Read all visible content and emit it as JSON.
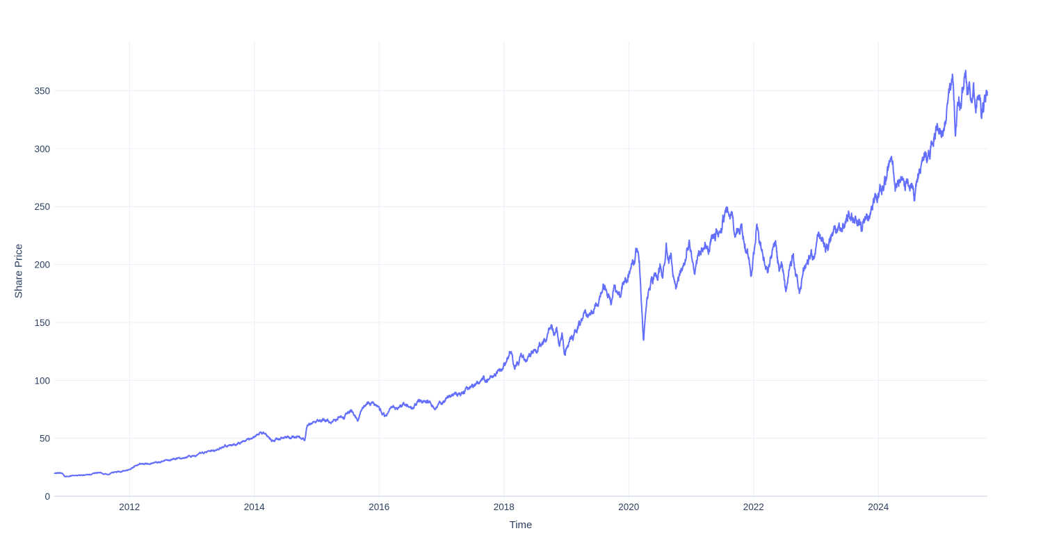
{
  "page": {
    "background": "#ffffff"
  },
  "chart_data": {
    "type": "line",
    "title": "",
    "xlabel": "Time",
    "ylabel": "Share Price",
    "legend": "none",
    "grid": true,
    "x_range": [
      2010.793,
      2025.746
    ],
    "y_range": [
      -3.0,
      392.3
    ],
    "x_ticks": [
      {
        "label": "2012",
        "value": 2012
      },
      {
        "label": "2014",
        "value": 2014
      },
      {
        "label": "2016",
        "value": 2016
      },
      {
        "label": "2018",
        "value": 2018
      },
      {
        "label": "2020",
        "value": 2020
      },
      {
        "label": "2022",
        "value": 2022
      },
      {
        "label": "2024",
        "value": 2024
      }
    ],
    "y_ticks": [
      {
        "label": "0",
        "value": 0
      },
      {
        "label": "50",
        "value": 50
      },
      {
        "label": "100",
        "value": 100
      },
      {
        "label": "150",
        "value": 150
      },
      {
        "label": "200",
        "value": 200
      },
      {
        "label": "250",
        "value": 250
      },
      {
        "label": "300",
        "value": 300
      },
      {
        "label": "350",
        "value": 350
      }
    ],
    "colors": {
      "line": "#636EFA",
      "grid": "#eaeff7",
      "zeroline": "#e1e7f2",
      "text": "#2a3f5f",
      "background": "#ffffff"
    },
    "series": [
      {
        "name": "Share Price",
        "line_width": 2,
        "points_per_year": 250,
        "noise_seed": 20,
        "noise": {
          "ar_coef": 0.88,
          "ar_innov": 0.012,
          "hf": 0.0055
        },
        "anchors_t": [
          2010.79,
          2010.85,
          2010.92,
          2010.96,
          2011.05,
          2011.15,
          2011.25,
          2011.33,
          2011.42,
          2011.5,
          2011.58,
          2011.65,
          2011.73,
          2011.82,
          2011.9,
          2012.0,
          2012.08,
          2012.16,
          2012.25,
          2012.33,
          2012.42,
          2012.5,
          2012.58,
          2012.67,
          2012.75,
          2012.83,
          2012.92,
          2013.0,
          2013.1,
          2013.2,
          2013.3,
          2013.4,
          2013.5,
          2013.6,
          2013.7,
          2013.8,
          2013.9,
          2014.0,
          2014.08,
          2014.15,
          2014.22,
          2014.28,
          2014.35,
          2014.42,
          2014.5,
          2014.58,
          2014.65,
          2014.71,
          2014.77,
          2014.81,
          2014.835,
          2014.87,
          2014.93,
          2015.0,
          2015.08,
          2015.15,
          2015.22,
          2015.3,
          2015.37,
          2015.44,
          2015.5,
          2015.56,
          2015.61,
          2015.655,
          2015.7,
          2015.76,
          2015.83,
          2015.9,
          2015.96,
          2016.03,
          2016.09,
          2016.17,
          2016.25,
          2016.33,
          2016.41,
          2016.47,
          2016.53,
          2016.6,
          2016.68,
          2016.76,
          2016.83,
          2016.89,
          2016.95,
          2017.0,
          2017.1,
          2017.2,
          2017.3,
          2017.4,
          2017.5,
          2017.6,
          2017.68,
          2017.75,
          2017.82,
          2017.9,
          2017.97,
          2018.04,
          2018.09,
          2018.13,
          2018.17,
          2018.23,
          2018.28,
          2018.34,
          2018.4,
          2018.47,
          2018.54,
          2018.61,
          2018.68,
          2018.73,
          2018.76,
          2018.8,
          2018.84,
          2018.89,
          2018.93,
          2018.97,
          2019.02,
          2019.08,
          2019.15,
          2019.22,
          2019.3,
          2019.37,
          2019.44,
          2019.5,
          2019.56,
          2019.61,
          2019.66,
          2019.71,
          2019.76,
          2019.81,
          2019.87,
          2019.93,
          2019.99,
          2020.05,
          2020.1,
          2020.13,
          2020.17,
          2020.2,
          2020.235,
          2020.27,
          2020.31,
          2020.36,
          2020.41,
          2020.46,
          2020.5,
          2020.54,
          2020.6,
          2020.64,
          2020.68,
          2020.71,
          2020.755,
          2020.8,
          2020.86,
          2020.92,
          2020.97,
          2021.02,
          2021.06,
          2021.12,
          2021.18,
          2021.23,
          2021.28,
          2021.34,
          2021.4,
          2021.46,
          2021.52,
          2021.57,
          2021.63,
          2021.69,
          2021.74,
          2021.79,
          2021.85,
          2021.91,
          2021.955,
          2022.0,
          2022.05,
          2022.11,
          2022.17,
          2022.23,
          2022.29,
          2022.35,
          2022.41,
          2022.46,
          2022.515,
          2022.57,
          2022.63,
          2022.69,
          2022.735,
          2022.8,
          2022.86,
          2022.92,
          2022.97,
          2023.03,
          2023.09,
          2023.15,
          2023.21,
          2023.29,
          2023.37,
          2023.45,
          2023.53,
          2023.6,
          2023.67,
          2023.74,
          2023.81,
          2023.88,
          2023.95,
          2024.01,
          2024.08,
          2024.15,
          2024.2,
          2024.26,
          2024.3,
          2024.37,
          2024.43,
          2024.49,
          2024.54,
          2024.575,
          2024.63,
          2024.69,
          2024.74,
          2024.79,
          2024.84,
          2024.89,
          2024.94,
          2024.98,
          2025.01,
          2025.05,
          2025.1,
          2025.15,
          2025.19,
          2025.215,
          2025.235,
          2025.26,
          2025.29,
          2025.32,
          2025.36,
          2025.4,
          2025.43,
          2025.46,
          2025.49,
          2025.52,
          2025.555,
          2025.59,
          2025.62,
          2025.65,
          2025.68,
          2025.71,
          2025.75
        ],
        "anchors_v": [
          19.5,
          20.3,
          19.8,
          16.9,
          18.1,
          17.7,
          17.9,
          18.5,
          19.7,
          20.4,
          19.4,
          18.9,
          20.3,
          21.2,
          21.9,
          23.6,
          25.8,
          27.6,
          28.4,
          28.1,
          29.3,
          30.1,
          30.8,
          31.4,
          32.2,
          32.9,
          33.7,
          34.8,
          36.2,
          37.3,
          39.2,
          40.9,
          42.3,
          43.6,
          44.8,
          46.9,
          49.2,
          51.6,
          54.3,
          55.3,
          51.2,
          47.9,
          49.0,
          50.6,
          51.7,
          51.1,
          50.7,
          51.4,
          49.6,
          47.9,
          57.5,
          61.6,
          62.8,
          64.6,
          65.4,
          66.6,
          63.6,
          66.1,
          68.9,
          67.4,
          73.2,
          74.3,
          70.5,
          64.5,
          71.5,
          77.6,
          79.8,
          80.6,
          78.9,
          73.5,
          69.4,
          73.6,
          76.4,
          78.2,
          78.7,
          76.3,
          74.6,
          80.2,
          82.3,
          82.9,
          81.9,
          76.6,
          78.2,
          80.6,
          84.9,
          87.6,
          89.7,
          91.8,
          94.4,
          98.2,
          100.8,
          100.1,
          103.4,
          107.2,
          108.9,
          117.5,
          126.1,
          122.4,
          111.8,
          117.9,
          121.4,
          116.2,
          120.9,
          124.6,
          129.3,
          133.9,
          137.2,
          146.1,
          150.2,
          136.6,
          144.8,
          134.2,
          139.0,
          122.8,
          129.6,
          135.4,
          142.9,
          151.2,
          157.8,
          156.4,
          161.8,
          165.3,
          173.6,
          183.9,
          177.3,
          169.2,
          179.1,
          174.3,
          179.8,
          183.2,
          189.6,
          199.3,
          204.6,
          213.6,
          203.5,
          172.0,
          135.2,
          157.5,
          174.0,
          187.5,
          191.2,
          187.9,
          196.3,
          190.8,
          214.0,
          203.8,
          207.0,
          197.4,
          183.9,
          190.5,
          203.2,
          207.8,
          213.8,
          202.5,
          193.4,
          204.6,
          212.3,
          217.2,
          207.3,
          221.9,
          227.4,
          222.3,
          236.8,
          250.6,
          240.2,
          231.6,
          227.2,
          233.1,
          222.4,
          206.3,
          187.6,
          209.5,
          234.8,
          219.6,
          203.1,
          194.2,
          208.4,
          216.4,
          192.8,
          198.7,
          180.3,
          197.9,
          212.3,
          187.1,
          177.8,
          196.6,
          201.9,
          209.8,
          207.6,
          228.3,
          224.7,
          219.2,
          217.4,
          225.6,
          231.3,
          237.6,
          245.4,
          239.6,
          236.1,
          229.7,
          236.8,
          247.2,
          255.4,
          261.0,
          272.3,
          281.7,
          289.6,
          271.2,
          266.8,
          277.4,
          274.6,
          271.3,
          264.1,
          253.6,
          274.3,
          284.8,
          290.8,
          284.9,
          296.7,
          308.9,
          318.2,
          311.6,
          306.8,
          317.9,
          333.5,
          349.8,
          362.6,
          341.2,
          309.4,
          334.6,
          347.3,
          340.9,
          360.3,
          373.6,
          357.8,
          363.9,
          347.1,
          352.6,
          331.5,
          343.4,
          346.8,
          338.2,
          345.7,
          341.9,
          347.2
        ]
      }
    ]
  }
}
